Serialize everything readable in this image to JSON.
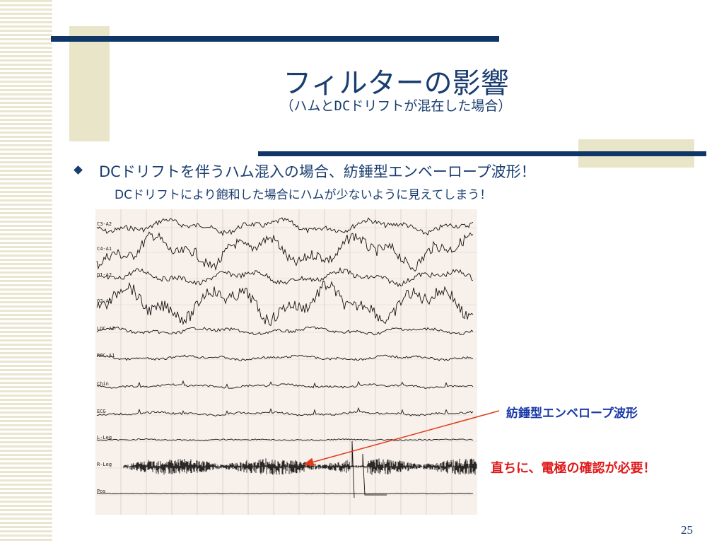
{
  "title": "フィルターの影響",
  "subtitle": "（ハムとDCドリフトが混在した場合）",
  "bullet": {
    "main": "DCドリフトを伴うハム混入の場合、紡錘型エンベーロープ波形！",
    "sub": "DCドリフトにより飽和した場合にハムが少ないように見えてしまう！"
  },
  "eeg": {
    "channels": [
      "C3-A2",
      "C4-A1",
      "O1-A2",
      "O2-A1",
      "LOC-A2",
      "ROC-A1",
      "Chin",
      "ECG",
      "L-Leg",
      "R-Leg",
      "Pos"
    ]
  },
  "callouts": {
    "spindle": "紡錘型エンベロープ波形",
    "check": "直ちに、電極の確認が必要！"
  },
  "colors": {
    "title": "#1a3e70",
    "accent_bar": "#0f3666",
    "callout_blue": "#1a3aa8",
    "callout_red": "#e01a1a",
    "arrow": "#e03a1a"
  },
  "page_number": "25"
}
